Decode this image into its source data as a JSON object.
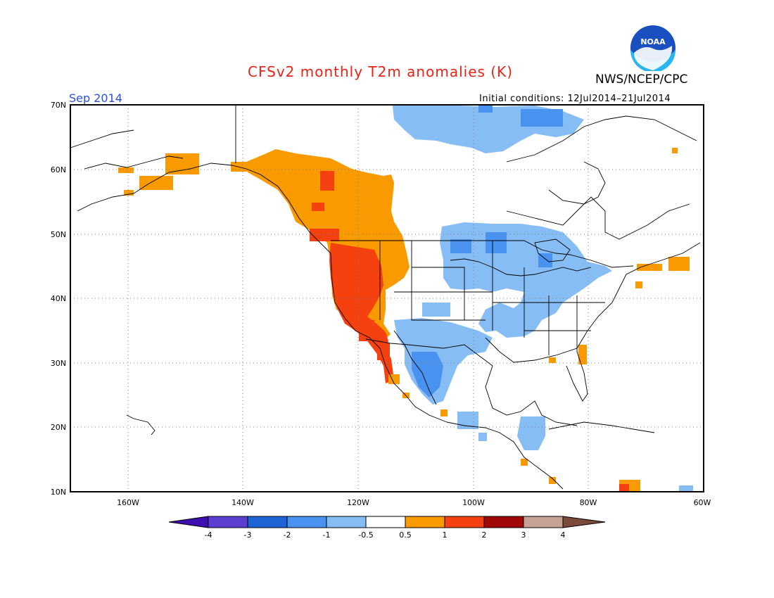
{
  "header": {
    "title": "CFSv2 monthly T2m anomalies (K)",
    "agency": "NWS/NCEP/CPC",
    "logo_text": "NOAA",
    "month": "Sep 2014",
    "initial_conditions": "Initial conditions: 12Jul2014–21Jul2014"
  },
  "map": {
    "lat_labels": [
      "70N",
      "60N",
      "50N",
      "40N",
      "30N",
      "20N",
      "10N"
    ],
    "lon_labels": [
      "160W",
      "140W",
      "120W",
      "100W",
      "80W",
      "60W"
    ]
  },
  "colorbar": {
    "labels": [
      "-4",
      "-3",
      "-2",
      "-1",
      "-0.5",
      "0.5",
      "1",
      "2",
      "3",
      "4"
    ],
    "colors": [
      "#3b0fb0",
      "#5a3fd0",
      "#1f64d6",
      "#4a92f0",
      "#87bdf5",
      "#ffffff",
      "#f99a00",
      "#f5410f",
      "#a00707",
      "#c6a295",
      "#7b4a3a"
    ]
  },
  "colors": {
    "warm_orange": "#f99a00",
    "warm_red": "#f5410f",
    "cool_blue": "#87bdf5",
    "cool_mid_blue": "#4a92f0",
    "title_red": "#e8231a",
    "month_blue": "#2b4fe0"
  }
}
